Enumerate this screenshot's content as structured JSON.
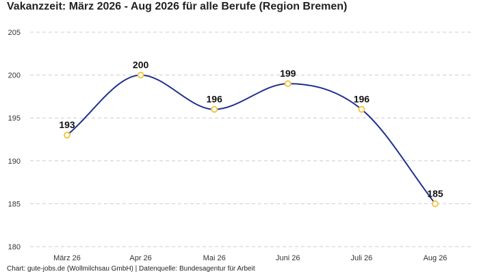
{
  "title": "Vakanzzeit: März 2026 - Aug 2026 für alle Berufe (Region Bremen)",
  "footer": "Chart: gute-jobs.de (Wollmilchsau GmbH) | Datenquelle: Bundesagentur für Arbeit",
  "colors": {
    "line": "#1f2f8f",
    "marker": "#f2c744",
    "grid": "#cccccc"
  },
  "chart_data": {
    "type": "line",
    "title": "Vakanzzeit: März 2026 - Aug 2026 für alle Berufe (Region Bremen)",
    "categories": [
      "März 26",
      "Apr 26",
      "Mai 26",
      "Juni 26",
      "Juli 26",
      "Aug 26"
    ],
    "series": [
      {
        "values": [
          193,
          200,
          196,
          199,
          196,
          185
        ]
      }
    ],
    "yticks": [
      180,
      185,
      190,
      195,
      200,
      205
    ],
    "ylim": [
      180,
      205
    ],
    "grid": true,
    "smooth": true,
    "data_labels": true
  }
}
